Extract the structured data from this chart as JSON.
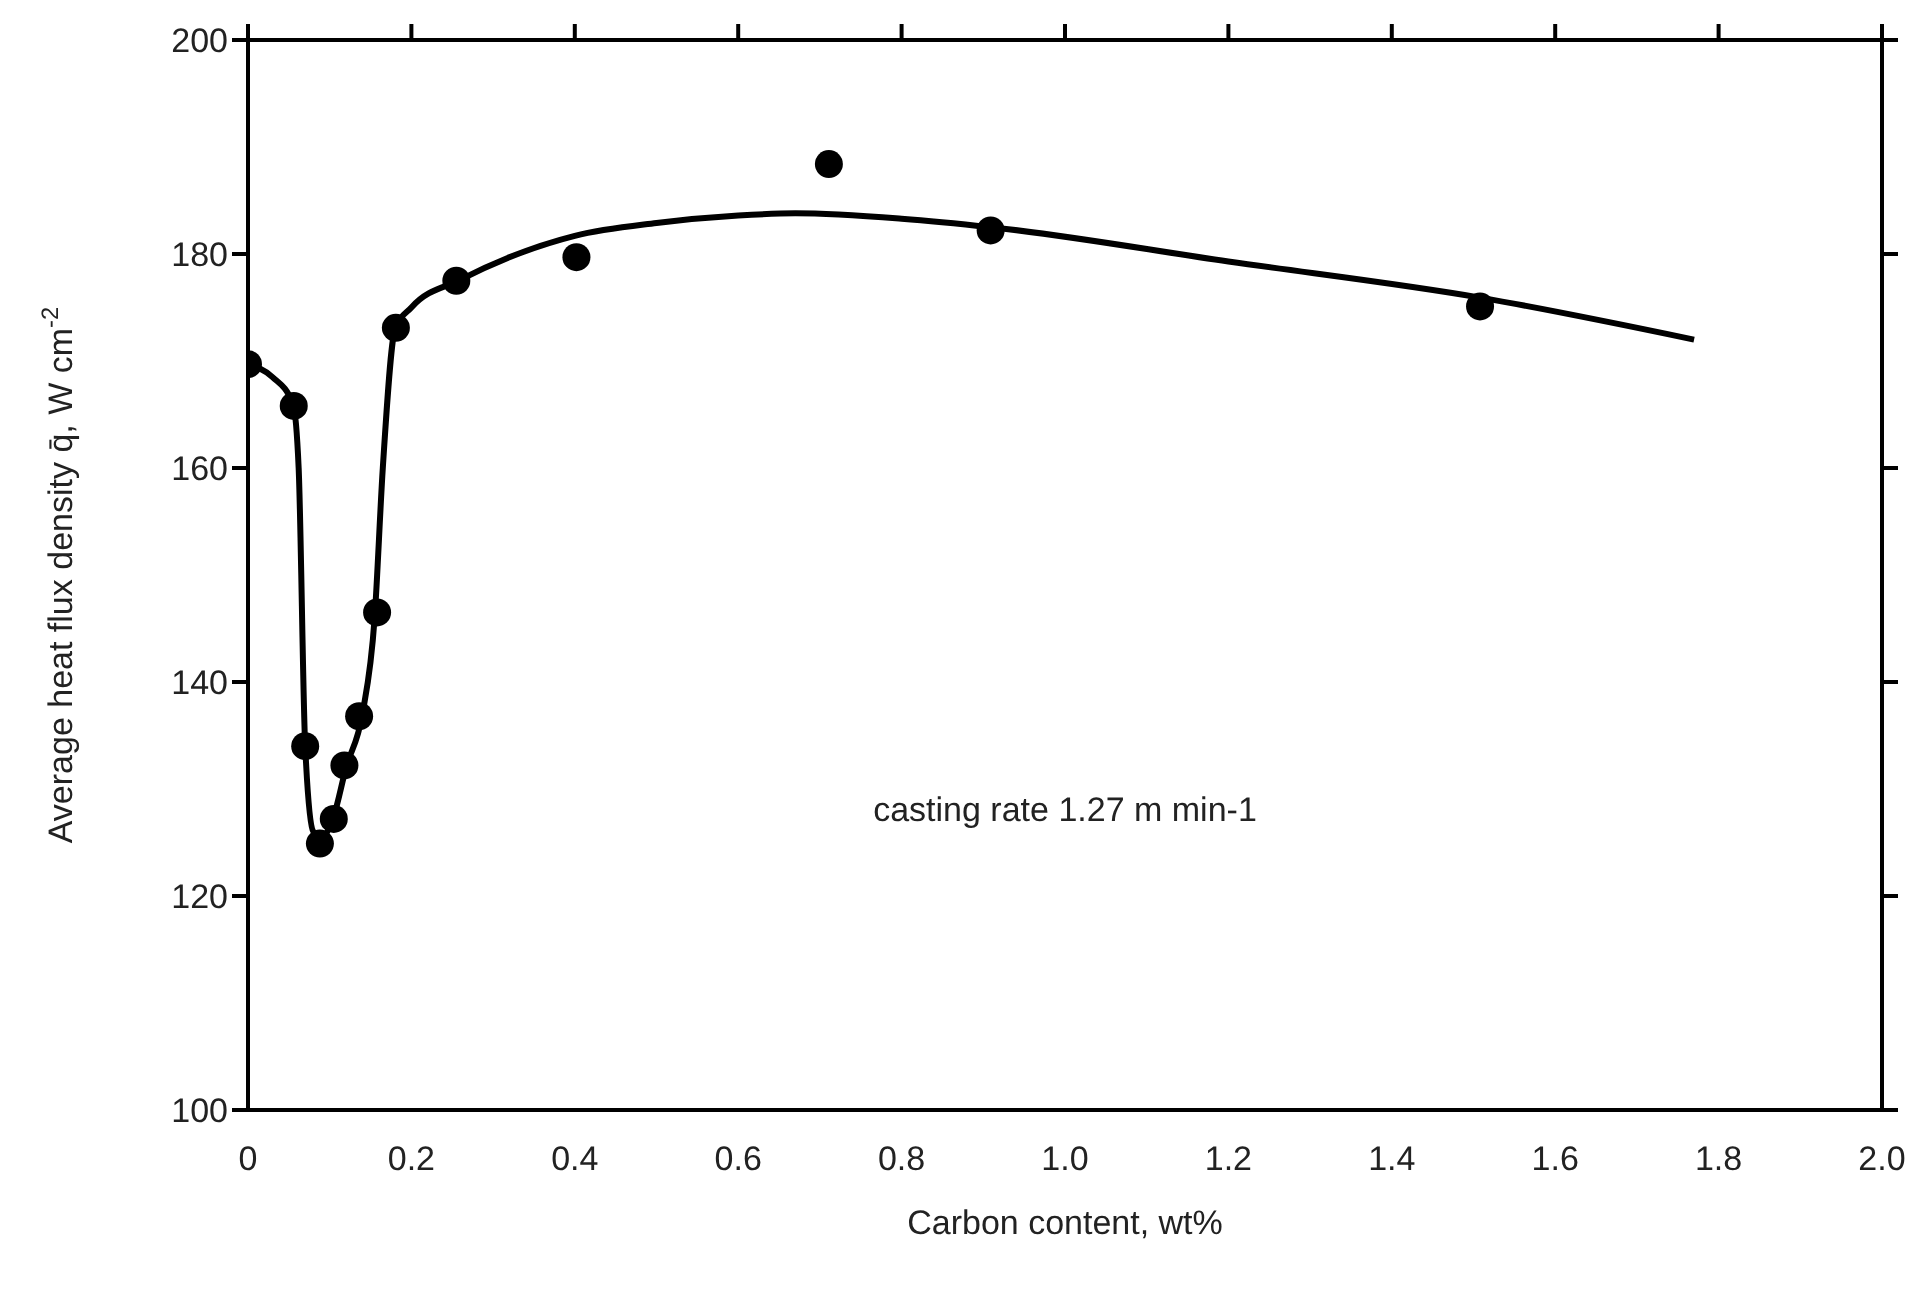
{
  "chart_data": {
    "type": "scatter",
    "xlabel": "Carbon content, wt%",
    "ylabel": "Average heat flux density q̄, W cm$^{-2}$",
    "annotations": [
      "casting rate 1.27 m min-1"
    ],
    "series": [
      {
        "color": "#000000",
        "marker": "circle",
        "x": [
          0,
          0.056,
          0.07,
          0.088,
          0.105,
          0.118,
          0.136,
          0.158,
          0.181,
          0.255,
          0.402,
          0.711,
          0.909,
          1.508
        ],
        "values": [
          169.7,
          165.8,
          134.0,
          124.9,
          127.2,
          132.2,
          136.8,
          146.5,
          173.1,
          177.5,
          179.7,
          188.4,
          182.2,
          175.1
        ]
      },
      {
        "type": "line",
        "color": "#000000",
        "marker": "none",
        "line_style": "solid",
        "x": [
          0,
          0.03,
          0.055,
          0.062,
          0.07,
          0.08,
          0.09,
          0.105,
          0.12,
          0.14,
          0.155,
          0.165,
          0.18,
          0.2,
          0.26,
          0.4,
          0.5,
          0.6,
          0.67,
          0.8,
          0.91,
          1.2,
          1.51,
          1.77
        ],
        "values": [
          169.7,
          168.5,
          166,
          160,
          134,
          126,
          125.5,
          127.5,
          132,
          137,
          146,
          160,
          173,
          175,
          177.6,
          181.7,
          182.9,
          183.6,
          183.8,
          183.3,
          182.5,
          179.3,
          175.9,
          172.0
        ]
      }
    ],
    "xlim": [
      0,
      2
    ],
    "xticks": [
      0,
      0.2,
      0.4,
      0.6,
      0.8,
      {
        "value": 1,
        "label": "1.0"
      },
      1.2,
      1.4,
      1.6,
      1.8,
      {
        "value": 2,
        "label": "2.0"
      }
    ],
    "ylim": [
      100,
      200
    ],
    "yticks": [
      100,
      120,
      140,
      160,
      180,
      200
    ],
    "grid": false
  }
}
